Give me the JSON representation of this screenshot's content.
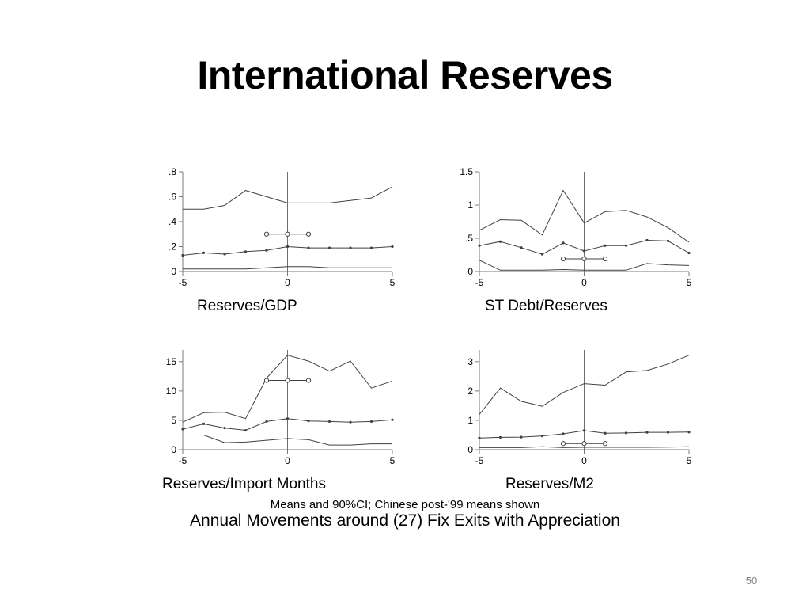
{
  "slide": {
    "title": "International Reserves",
    "note": "Means and 90%CI; Chinese post-'99 means shown",
    "subtitle": "Annual Movements around (27) Fix Exits with Appreciation",
    "page_number": "50"
  },
  "colors": {
    "line": "#404040",
    "axis": "#7a7a7a",
    "refline": "#6f6f6f"
  },
  "chart_data": [
    {
      "type": "line",
      "title": "Reserves/GDP",
      "xlabel": "",
      "ylabel": "",
      "xlim": [
        -5,
        5
      ],
      "ylim": [
        0,
        0.8
      ],
      "xticks": [
        -5,
        0,
        5
      ],
      "xtick_labels": [
        "-5",
        "0",
        "5"
      ],
      "yticks": [
        0,
        0.2,
        0.4,
        0.6,
        0.8
      ],
      "ytick_labels": [
        "0",
        ".2",
        ".4",
        ".6",
        ".8"
      ],
      "vline": 0,
      "x": [
        -5,
        -4,
        -3,
        -2,
        -1,
        0,
        1,
        2,
        3,
        4,
        5
      ],
      "series": [
        {
          "role": "upper",
          "values": [
            0.5,
            0.5,
            0.53,
            0.65,
            0.6,
            0.55,
            0.55,
            0.55,
            0.57,
            0.59,
            0.68
          ]
        },
        {
          "role": "mean",
          "values": [
            0.13,
            0.15,
            0.14,
            0.16,
            0.17,
            0.2,
            0.19,
            0.19,
            0.19,
            0.19,
            0.2
          ]
        },
        {
          "role": "lower",
          "values": [
            0.02,
            0.02,
            0.02,
            0.02,
            0.03,
            0.04,
            0.04,
            0.03,
            0.03,
            0.03,
            0.03
          ]
        },
        {
          "role": "china",
          "x": [
            -1,
            0,
            1
          ],
          "values": [
            0.3,
            0.3,
            0.3
          ]
        }
      ]
    },
    {
      "type": "line",
      "title": "ST Debt/Reserves",
      "xlabel": "",
      "ylabel": "",
      "xlim": [
        -5,
        5
      ],
      "ylim": [
        0,
        1.5
      ],
      "xticks": [
        -5,
        0,
        5
      ],
      "xtick_labels": [
        "-5",
        "0",
        "5"
      ],
      "yticks": [
        0,
        0.5,
        1,
        1.5
      ],
      "ytick_labels": [
        "0",
        ".5",
        "1",
        "1.5"
      ],
      "vline": 0,
      "x": [
        -5,
        -4,
        -3,
        -2,
        -1,
        0,
        1,
        2,
        3,
        4,
        5
      ],
      "series": [
        {
          "role": "upper",
          "values": [
            0.62,
            0.78,
            0.77,
            0.55,
            1.22,
            0.73,
            0.9,
            0.92,
            0.82,
            0.66,
            0.44
          ]
        },
        {
          "role": "mean",
          "values": [
            0.39,
            0.45,
            0.36,
            0.26,
            0.43,
            0.31,
            0.39,
            0.39,
            0.47,
            0.46,
            0.28
          ]
        },
        {
          "role": "lower",
          "values": [
            0.17,
            0.02,
            0.02,
            0.02,
            0.03,
            0.02,
            0.02,
            0.02,
            0.12,
            0.1,
            0.09
          ]
        },
        {
          "role": "china",
          "x": [
            -1,
            0,
            1
          ],
          "values": [
            0.19,
            0.19,
            0.19
          ]
        }
      ]
    },
    {
      "type": "line",
      "title": "Reserves/Import Months",
      "xlabel": "",
      "ylabel": "",
      "xlim": [
        -5,
        5
      ],
      "ylim": [
        0,
        17
      ],
      "xticks": [
        -5,
        0,
        5
      ],
      "xtick_labels": [
        "-5",
        "0",
        "5"
      ],
      "yticks": [
        0,
        5,
        10,
        15
      ],
      "ytick_labels": [
        "0",
        "5",
        "10",
        "15"
      ],
      "vline": 0,
      "x": [
        -5,
        -4,
        -3,
        -2,
        -1,
        0,
        1,
        2,
        3,
        4,
        5
      ],
      "series": [
        {
          "role": "upper",
          "values": [
            4.7,
            6.3,
            6.4,
            5.3,
            12.2,
            16.1,
            15.1,
            13.4,
            15.1,
            10.5,
            11.7
          ]
        },
        {
          "role": "mean",
          "values": [
            3.5,
            4.4,
            3.7,
            3.3,
            4.8,
            5.3,
            4.9,
            4.8,
            4.7,
            4.8,
            5.1
          ]
        },
        {
          "role": "lower",
          "values": [
            2.5,
            2.5,
            1.2,
            1.3,
            1.6,
            1.9,
            1.7,
            0.8,
            0.8,
            1.0,
            1.0
          ]
        },
        {
          "role": "china",
          "x": [
            -1,
            0,
            1
          ],
          "values": [
            11.8,
            11.8,
            11.8
          ]
        }
      ]
    },
    {
      "type": "line",
      "title": "Reserves/M2",
      "xlabel": "",
      "ylabel": "",
      "xlim": [
        -5,
        5
      ],
      "ylim": [
        0,
        3.4
      ],
      "xticks": [
        -5,
        0,
        5
      ],
      "xtick_labels": [
        "-5",
        "0",
        "5"
      ],
      "yticks": [
        0,
        1,
        2,
        3
      ],
      "ytick_labels": [
        "0",
        "1",
        "2",
        "3"
      ],
      "vline": 0,
      "x": [
        -5,
        -4,
        -3,
        -2,
        -1,
        0,
        1,
        2,
        3,
        4,
        5
      ],
      "series": [
        {
          "role": "upper",
          "values": [
            1.2,
            2.1,
            1.65,
            1.48,
            1.95,
            2.25,
            2.2,
            2.65,
            2.7,
            2.92,
            3.22
          ]
        },
        {
          "role": "mean",
          "values": [
            0.4,
            0.42,
            0.43,
            0.47,
            0.54,
            0.65,
            0.56,
            0.57,
            0.59,
            0.59,
            0.6
          ]
        },
        {
          "role": "lower",
          "values": [
            0.07,
            0.07,
            0.07,
            0.1,
            0.07,
            0.08,
            0.08,
            0.08,
            0.08,
            0.09,
            0.1
          ]
        },
        {
          "role": "china",
          "x": [
            -1,
            0,
            1
          ],
          "values": [
            0.21,
            0.21,
            0.21
          ]
        }
      ]
    }
  ]
}
